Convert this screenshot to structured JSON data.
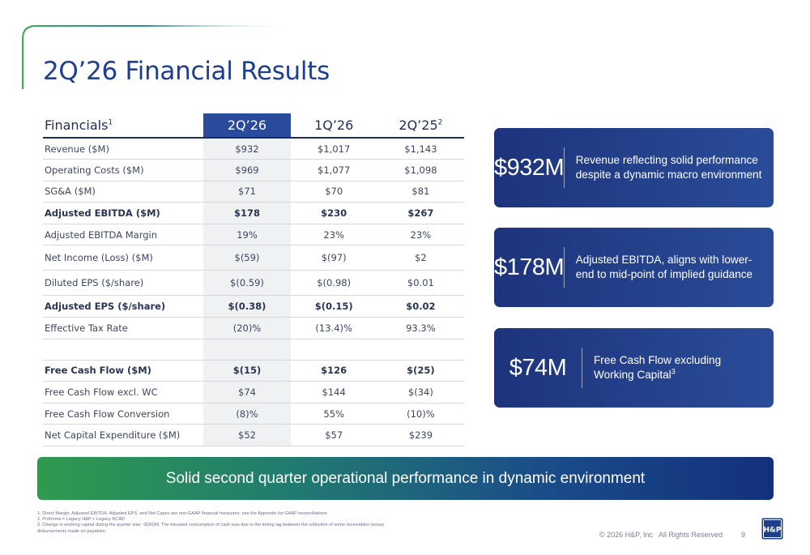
{
  "title": "2Q’26 Financial Results",
  "table": {
    "header": {
      "label": "Financials",
      "label_sup": "1",
      "col_current": "2Q’26",
      "col_prior_q": "1Q’26",
      "col_prior_y": "2Q’25",
      "col_prior_y_sup": "2"
    },
    "rows": [
      {
        "label": "Revenue ($M)",
        "v1": "$932",
        "v2": "$1,017",
        "v3": "$1,143"
      },
      {
        "label": "Operating Costs ($M)",
        "v1": "$969",
        "v2": "$1,077",
        "v3": "$1,098"
      },
      {
        "label": "SG&A ($M)",
        "v1": "$71",
        "v2": "$70",
        "v3": "$81"
      },
      {
        "label": "Adjusted EBITDA ($M)",
        "v1": "$178",
        "v2": "$230",
        "v3": "$267"
      },
      {
        "label": "Adjusted EBITDA Margin",
        "v1": "19%",
        "v2": "23%",
        "v3": "23%"
      },
      {
        "label": "Net Income (Loss) ($M)",
        "v1": "$(59)",
        "v2": "$(97)",
        "v3": "$2"
      },
      {
        "label": "Diluted EPS ($/share)",
        "v1": "$(0.59)",
        "v2": "$(0.98)",
        "v3": "$0.01"
      },
      {
        "label": "Adjusted EPS ($/share)",
        "v1": "$(0.38)",
        "v2": "$(0.15)",
        "v3": "$0.02"
      },
      {
        "label": "Effective Tax Rate",
        "v1": "(20)%",
        "v2": "(13.4)%",
        "v3": "93.3%"
      },
      {
        "label": "Free Cash Flow ($M)",
        "v1": "$(15)",
        "v2": "$126",
        "v3": "$(25)"
      },
      {
        "label": "Free Cash Flow excl. WC",
        "v1": "$74",
        "v2": "$144",
        "v3": "$(34)"
      },
      {
        "label": "Free Cash Flow Conversion",
        "v1": "(8)%",
        "v2": "55%",
        "v3": "(10)%"
      },
      {
        "label": "Net Capital Expenditure ($M)",
        "v1": "$52",
        "v2": "$57",
        "v3": "$239"
      }
    ]
  },
  "kpis": [
    {
      "value": "$932M",
      "text": "Revenue reflecting solid performance despite a dynamic macro environment",
      "sup": ""
    },
    {
      "value": "$178M",
      "text": "Adjusted EBITDA, aligns with lower-end to mid-point of implied guidance",
      "sup": ""
    },
    {
      "value": "$74M",
      "text": "Free Cash Flow excluding Working Capital",
      "sup": "3"
    }
  ],
  "banner": "Solid second quarter operational performance in dynamic environment",
  "footnotes": [
    "1. Direct Margin, Adjusted EBITDA, Adjusted EPS, and Net Capex are non-GAAP financial measures; see the Appendix for GAAP reconciliations",
    "2. Proforma = Legacy H&P + Legacy KCAD",
    "3. Change in working capital during the quarter was ~$(90)M. The elevated consumption of cash was due to the timing lag between the collection of some receivables versus disbursements made on payables."
  ],
  "footer": {
    "copyright": "© 2026 H&P, Inc   All Rights Reserved",
    "page_number": "9",
    "logo_text": "H&P"
  },
  "colors": {
    "title": "#1e3f8f",
    "card": "#1d347c",
    "banner_start": "#2f9a4e",
    "banner_end": "#13307c"
  }
}
